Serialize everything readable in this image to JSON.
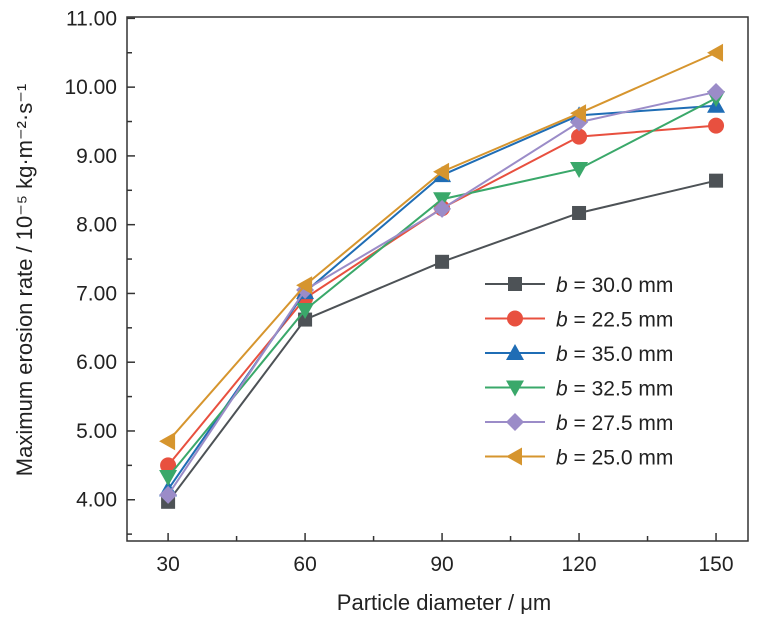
{
  "chart_data": {
    "type": "line",
    "xlabel": "Particle diameter / μm",
    "ylabel": "Maximum erosion rate / 10⁻⁵ kg·m⁻²·s⁻¹",
    "x": [
      30,
      60,
      90,
      120,
      150
    ],
    "xticks": [
      "30",
      "60",
      "90",
      "120",
      "150"
    ],
    "yticks": [
      "4.00",
      "5.00",
      "6.00",
      "7.00",
      "8.00",
      "9.00",
      "10.00",
      "11.00"
    ],
    "xlim": [
      21,
      157
    ],
    "ylim": [
      3.4,
      11.02
    ],
    "grid": false,
    "legend_position": "center-right",
    "series": [
      {
        "name": "b = 30.0 mm",
        "prefix": "b",
        "suffix": " = 30.0 mm",
        "color": "#4d5256",
        "marker": "square",
        "values": [
          3.97,
          6.62,
          7.46,
          8.17,
          8.64
        ]
      },
      {
        "name": "b = 22.5 mm",
        "prefix": "b",
        "suffix": " = 22.5 mm",
        "color": "#e8503f",
        "marker": "circle",
        "values": [
          4.5,
          6.93,
          8.24,
          9.28,
          9.44
        ]
      },
      {
        "name": "b = 35.0 mm",
        "prefix": "b",
        "suffix": " = 35.0 mm",
        "color": "#1f6db5",
        "marker": "triangle-up",
        "values": [
          4.15,
          7.02,
          8.72,
          9.59,
          9.73
        ]
      },
      {
        "name": "b = 32.5 mm",
        "prefix": "b",
        "suffix": " = 32.5 mm",
        "color": "#3aa86a",
        "marker": "triangle-down",
        "values": [
          4.33,
          6.76,
          8.37,
          8.81,
          9.84
        ]
      },
      {
        "name": "b = 27.5 mm",
        "prefix": "b",
        "suffix": " = 27.5 mm",
        "color": "#9b8cc8",
        "marker": "diamond",
        "values": [
          4.07,
          7.05,
          8.23,
          9.49,
          9.93
        ]
      },
      {
        "name": "b = 25.0 mm",
        "prefix": "b",
        "suffix": " = 25.0 mm",
        "color": "#d6952e",
        "marker": "triangle-left",
        "values": [
          4.85,
          7.12,
          8.77,
          9.62,
          10.5
        ]
      }
    ]
  }
}
